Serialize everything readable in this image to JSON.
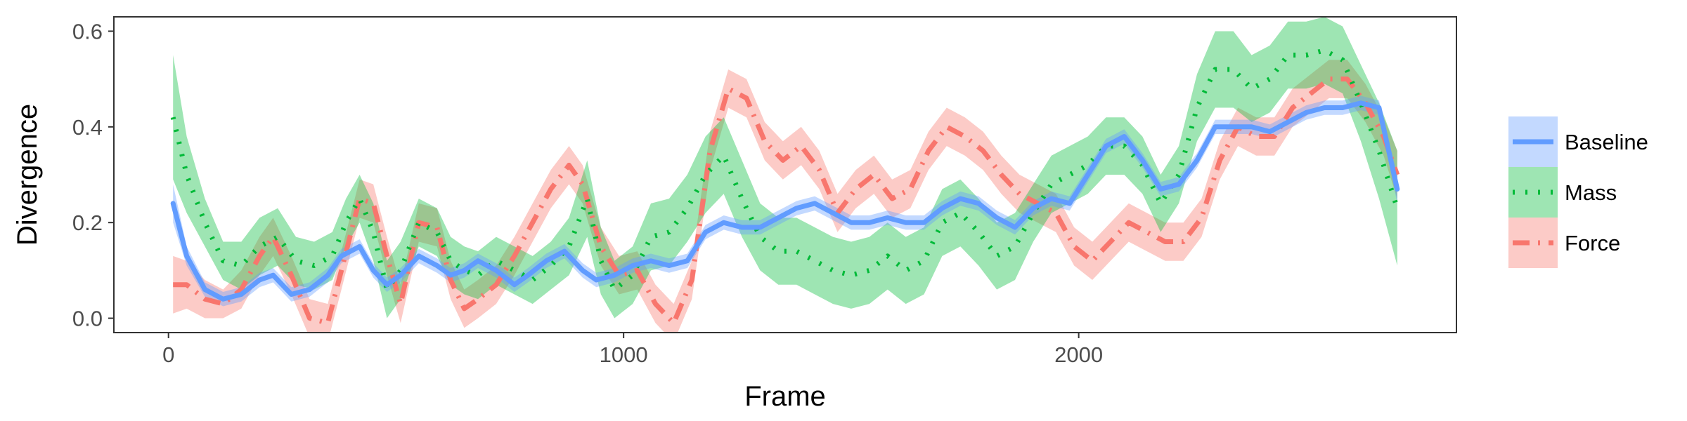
{
  "chart_data": {
    "type": "line",
    "title": "",
    "xlabel": "Frame",
    "ylabel": "Divergence",
    "xlim": [
      -120,
      2830
    ],
    "ylim": [
      -0.03,
      0.63
    ],
    "xticks": [
      0,
      1000,
      2000
    ],
    "xtick_labels": [
      "0",
      "1000",
      "2000"
    ],
    "yticks": [
      0.0,
      0.2,
      0.4,
      0.6
    ],
    "ytick_labels": [
      "0.0",
      "0.2",
      "0.4",
      "0.6"
    ],
    "grid": false,
    "legend_position": "right",
    "series": [
      {
        "name": "Baseline",
        "color": "#619CFF",
        "linestyle": "solid",
        "x": [
          10,
          40,
          80,
          120,
          160,
          200,
          230,
          270,
          310,
          350,
          380,
          420,
          450,
          480,
          510,
          550,
          590,
          620,
          650,
          680,
          720,
          760,
          790,
          830,
          870,
          910,
          940,
          980,
          1020,
          1060,
          1100,
          1140,
          1180,
          1220,
          1260,
          1300,
          1340,
          1380,
          1420,
          1460,
          1500,
          1540,
          1580,
          1620,
          1660,
          1700,
          1740,
          1780,
          1820,
          1860,
          1900,
          1940,
          1980,
          2020,
          2060,
          2100,
          2140,
          2180,
          2220,
          2260,
          2300,
          2340,
          2380,
          2420,
          2460,
          2500,
          2540,
          2580,
          2620,
          2660,
          2700
        ],
        "values": [
          0.24,
          0.13,
          0.06,
          0.04,
          0.05,
          0.08,
          0.09,
          0.05,
          0.06,
          0.09,
          0.13,
          0.15,
          0.1,
          0.07,
          0.09,
          0.13,
          0.11,
          0.09,
          0.1,
          0.12,
          0.1,
          0.07,
          0.09,
          0.12,
          0.14,
          0.1,
          0.08,
          0.09,
          0.11,
          0.12,
          0.11,
          0.12,
          0.18,
          0.2,
          0.19,
          0.19,
          0.21,
          0.23,
          0.24,
          0.22,
          0.2,
          0.2,
          0.21,
          0.2,
          0.2,
          0.23,
          0.25,
          0.24,
          0.21,
          0.19,
          0.23,
          0.25,
          0.24,
          0.3,
          0.36,
          0.38,
          0.33,
          0.27,
          0.28,
          0.33,
          0.4,
          0.4,
          0.4,
          0.39,
          0.41,
          0.43,
          0.44,
          0.44,
          0.45,
          0.44,
          0.27
        ],
        "band_halfwidth": [
          0.04,
          0.02,
          0.015,
          0.015,
          0.015,
          0.015,
          0.015,
          0.015,
          0.015,
          0.015,
          0.015,
          0.015,
          0.015,
          0.015,
          0.015,
          0.015,
          0.015,
          0.015,
          0.015,
          0.015,
          0.015,
          0.015,
          0.015,
          0.015,
          0.015,
          0.015,
          0.015,
          0.015,
          0.015,
          0.015,
          0.015,
          0.015,
          0.015,
          0.015,
          0.015,
          0.015,
          0.015,
          0.015,
          0.015,
          0.015,
          0.015,
          0.015,
          0.015,
          0.015,
          0.015,
          0.015,
          0.015,
          0.015,
          0.015,
          0.015,
          0.015,
          0.015,
          0.015,
          0.015,
          0.015,
          0.015,
          0.015,
          0.015,
          0.015,
          0.015,
          0.015,
          0.015,
          0.015,
          0.015,
          0.015,
          0.015,
          0.015,
          0.015,
          0.015,
          0.015,
          0.03
        ]
      },
      {
        "name": "Mass",
        "color": "#00BA38",
        "linestyle": "dotted",
        "x": [
          10,
          40,
          80,
          120,
          160,
          200,
          240,
          280,
          320,
          360,
          390,
          420,
          450,
          480,
          510,
          550,
          590,
          620,
          650,
          680,
          720,
          760,
          800,
          840,
          880,
          920,
          950,
          980,
          1020,
          1060,
          1100,
          1140,
          1180,
          1220,
          1260,
          1300,
          1340,
          1380,
          1420,
          1460,
          1500,
          1540,
          1580,
          1620,
          1660,
          1700,
          1740,
          1780,
          1820,
          1860,
          1900,
          1940,
          1980,
          2020,
          2060,
          2100,
          2140,
          2180,
          2220,
          2260,
          2300,
          2340,
          2380,
          2420,
          2460,
          2500,
          2540,
          2580,
          2620,
          2660,
          2700
        ],
        "values": [
          0.42,
          0.3,
          0.2,
          0.12,
          0.11,
          0.15,
          0.17,
          0.12,
          0.11,
          0.13,
          0.2,
          0.25,
          0.18,
          0.06,
          0.1,
          0.2,
          0.18,
          0.12,
          0.1,
          0.09,
          0.12,
          0.1,
          0.08,
          0.11,
          0.15,
          0.25,
          0.12,
          0.06,
          0.09,
          0.17,
          0.18,
          0.23,
          0.3,
          0.34,
          0.25,
          0.17,
          0.14,
          0.14,
          0.12,
          0.1,
          0.09,
          0.1,
          0.13,
          0.1,
          0.12,
          0.2,
          0.22,
          0.18,
          0.13,
          0.15,
          0.22,
          0.28,
          0.3,
          0.32,
          0.36,
          0.36,
          0.32,
          0.24,
          0.3,
          0.44,
          0.52,
          0.52,
          0.48,
          0.5,
          0.55,
          0.55,
          0.56,
          0.54,
          0.45,
          0.35,
          0.23
        ],
        "band_halfwidth": [
          0.13,
          0.08,
          0.05,
          0.04,
          0.05,
          0.06,
          0.06,
          0.05,
          0.05,
          0.05,
          0.05,
          0.05,
          0.06,
          0.06,
          0.06,
          0.05,
          0.05,
          0.05,
          0.05,
          0.05,
          0.05,
          0.05,
          0.05,
          0.05,
          0.06,
          0.08,
          0.07,
          0.06,
          0.06,
          0.07,
          0.07,
          0.07,
          0.08,
          0.08,
          0.08,
          0.07,
          0.07,
          0.07,
          0.07,
          0.07,
          0.07,
          0.07,
          0.07,
          0.07,
          0.07,
          0.07,
          0.07,
          0.07,
          0.07,
          0.07,
          0.06,
          0.06,
          0.06,
          0.06,
          0.06,
          0.06,
          0.06,
          0.06,
          0.06,
          0.07,
          0.08,
          0.08,
          0.07,
          0.07,
          0.07,
          0.07,
          0.07,
          0.07,
          0.08,
          0.1,
          0.12
        ]
      },
      {
        "name": "Force",
        "color": "#F8766D",
        "linestyle": "dashdot",
        "x": [
          10,
          40,
          80,
          120,
          160,
          200,
          230,
          270,
          310,
          350,
          380,
          420,
          450,
          480,
          510,
          550,
          590,
          620,
          650,
          680,
          720,
          760,
          800,
          840,
          880,
          910,
          950,
          990,
          1030,
          1070,
          1110,
          1150,
          1190,
          1230,
          1270,
          1310,
          1350,
          1390,
          1430,
          1470,
          1510,
          1550,
          1590,
          1630,
          1670,
          1710,
          1750,
          1790,
          1830,
          1870,
          1910,
          1950,
          1990,
          2030,
          2070,
          2110,
          2150,
          2190,
          2230,
          2270,
          2310,
          2350,
          2390,
          2430,
          2470,
          2510,
          2550,
          2590,
          2630,
          2670,
          2700
        ],
        "values": [
          0.07,
          0.07,
          0.04,
          0.03,
          0.06,
          0.13,
          0.17,
          0.09,
          0.0,
          -0.01,
          0.1,
          0.25,
          0.24,
          0.13,
          0.03,
          0.2,
          0.19,
          0.08,
          0.02,
          0.04,
          0.07,
          0.13,
          0.2,
          0.27,
          0.32,
          0.28,
          0.15,
          0.09,
          0.1,
          0.03,
          -0.01,
          0.08,
          0.35,
          0.48,
          0.46,
          0.37,
          0.33,
          0.36,
          0.31,
          0.22,
          0.27,
          0.3,
          0.25,
          0.27,
          0.35,
          0.4,
          0.38,
          0.35,
          0.3,
          0.26,
          0.24,
          0.22,
          0.15,
          0.12,
          0.16,
          0.2,
          0.18,
          0.16,
          0.16,
          0.21,
          0.33,
          0.4,
          0.38,
          0.38,
          0.44,
          0.47,
          0.5,
          0.5,
          0.45,
          0.38,
          0.3
        ],
        "band_halfwidth": [
          0.06,
          0.05,
          0.04,
          0.03,
          0.04,
          0.04,
          0.04,
          0.04,
          0.04,
          0.04,
          0.04,
          0.04,
          0.04,
          0.04,
          0.04,
          0.04,
          0.04,
          0.04,
          0.04,
          0.04,
          0.04,
          0.04,
          0.04,
          0.04,
          0.04,
          0.04,
          0.04,
          0.04,
          0.04,
          0.04,
          0.04,
          0.04,
          0.04,
          0.04,
          0.04,
          0.04,
          0.04,
          0.04,
          0.04,
          0.04,
          0.04,
          0.04,
          0.04,
          0.04,
          0.04,
          0.04,
          0.04,
          0.04,
          0.04,
          0.04,
          0.04,
          0.04,
          0.04,
          0.04,
          0.04,
          0.04,
          0.04,
          0.04,
          0.04,
          0.04,
          0.04,
          0.04,
          0.04,
          0.04,
          0.04,
          0.04,
          0.04,
          0.04,
          0.04,
          0.04,
          0.05
        ]
      }
    ]
  },
  "legend": {
    "items": [
      {
        "label": "Baseline",
        "color": "#619CFF",
        "linestyle": "solid"
      },
      {
        "label": "Mass",
        "color": "#00BA38",
        "linestyle": "dotted"
      },
      {
        "label": "Force",
        "color": "#F8766D",
        "linestyle": "dashdot"
      }
    ]
  }
}
